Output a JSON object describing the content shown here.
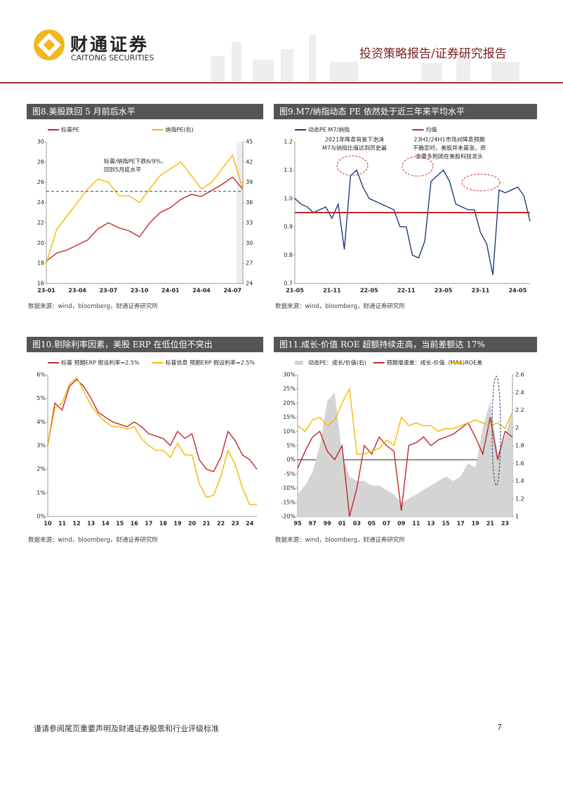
{
  "header": {
    "company_cn": "财通证券",
    "company_en": "CAITONG SECURITIES",
    "report_type": "投资策略报告/证券研究报告"
  },
  "chart_data": [
    {
      "type": "line",
      "title": "图8.美股跌回 5 月前后水平",
      "source": "数据来源：wind，bloomberg，财通证券研究所",
      "annotations": [
        {
          "lines": [
            "标普/纳指PE下跌6/9%，",
            "回到5月底水平"
          ]
        }
      ],
      "categories": [
        "23-01",
        null,
        null,
        "23-04",
        null,
        null,
        "23-07",
        null,
        null,
        "23-10",
        null,
        null,
        "24-01",
        null,
        null,
        "24-04",
        null,
        null,
        "24-07",
        null
      ],
      "ylim": [
        16,
        30
      ],
      "yticks": [
        16,
        18,
        20,
        22,
        24,
        26,
        28,
        30
      ],
      "y2lim": [
        24,
        45
      ],
      "y2ticks": [
        24,
        27,
        30,
        33,
        36,
        39,
        42,
        45
      ],
      "reference_line": {
        "value": 25.1,
        "color": "#2040a0",
        "dashed": true
      },
      "series": [
        {
          "name": "标普PE",
          "color": "#c0282d",
          "values": [
            18.2,
            19.0,
            19.3,
            19.8,
            20.3,
            21.4,
            22.0,
            21.5,
            21.2,
            20.6,
            22.0,
            23.0,
            23.5,
            24.3,
            24.8,
            24.6,
            25.2,
            25.8,
            26.5,
            25.3
          ]
        },
        {
          "name": "纳指PE(右)",
          "color": "#f5b800",
          "axis": "y2",
          "values": [
            27,
            32,
            34,
            36,
            38,
            39.5,
            39,
            37,
            37,
            36,
            38,
            40,
            41,
            42,
            40,
            38,
            39,
            41,
            43,
            38
          ]
        }
      ]
    },
    {
      "type": "line",
      "title": "图9.M7/纳指动态 PE 依然处于近三年来平均水平",
      "source": "数据来源：wind，bloomberg，财通证券研究所",
      "annotations": [
        {
          "lines": [
            "2021年降息背景下泡沫",
            "M7与纳指比值达到历史最"
          ]
        },
        {
          "lines": [
            "23H1/24H1市场对降息预期",
            "不确定时，美股并未普涨，资",
            "金更多抱团在美股科技龙头"
          ]
        }
      ],
      "categories": [
        "21-05",
        null,
        null,
        null,
        null,
        null,
        "21-11",
        null,
        null,
        null,
        null,
        null,
        "22-05",
        null,
        null,
        null,
        null,
        null,
        "22-11",
        null,
        null,
        null,
        null,
        null,
        "23-05",
        null,
        null,
        null,
        null,
        null,
        "23-11",
        null,
        null,
        null,
        null,
        null,
        "24-05",
        null,
        null
      ],
      "ylim": [
        0.7,
        1.2
      ],
      "yticks": [
        0.7,
        0.8,
        0.9,
        {
          "value": 1.0,
          "label": "1.0"
        },
        1.1,
        1.2
      ],
      "reference_line": {
        "name": "均值",
        "value": 0.95,
        "color": "#c0282d",
        "dashed": false
      },
      "series": [
        {
          "name": "动态PE M7/纳指",
          "color": "#1f3a7a",
          "values": [
            1.0,
            0.98,
            0.97,
            0.95,
            0.96,
            0.97,
            0.93,
            0.98,
            0.82,
            1.08,
            1.1,
            1.04,
            1.0,
            0.99,
            0.98,
            0.97,
            0.96,
            0.9,
            0.9,
            0.8,
            0.79,
            0.85,
            1.06,
            1.08,
            1.1,
            1.06,
            0.98,
            0.97,
            0.96,
            0.96,
            0.88,
            0.84,
            0.73,
            1.03,
            1.02,
            1.03,
            1.04,
            1.01,
            0.92
          ]
        }
      ]
    },
    {
      "type": "line",
      "title": "图10.剔除利率因素，美股 ERP 在低位但不突出",
      "source": "数据来源：wind，bloomberg，财通证券研究所",
      "categories": [
        "10",
        null,
        "11",
        null,
        "12",
        null,
        "13",
        null,
        "14",
        null,
        "15",
        null,
        "16",
        null,
        "17",
        null,
        "18",
        null,
        "19",
        null,
        "20",
        null,
        "21",
        null,
        "22",
        null,
        "23",
        null,
        "24",
        null
      ],
      "ylim": [
        0,
        6
      ],
      "yticks": [
        {
          "value": 0,
          "label": "0%"
        },
        {
          "value": 1,
          "label": "1%"
        },
        {
          "value": 2,
          "label": "2%"
        },
        {
          "value": 3,
          "label": "3%"
        },
        {
          "value": 4,
          "label": "4%"
        },
        {
          "value": 5,
          "label": "5%"
        },
        {
          "value": 6,
          "label": "6%"
        }
      ],
      "series": [
        {
          "name": "标普 预期ERP 假设利率=2.5%",
          "color": "#c0282d",
          "values": [
            3.0,
            4.8,
            4.5,
            5.5,
            5.8,
            5.5,
            5.0,
            4.4,
            4.2,
            4.0,
            3.9,
            3.8,
            4.0,
            3.8,
            3.5,
            3.4,
            3.3,
            3.0,
            3.6,
            3.3,
            3.5,
            2.4,
            2.0,
            1.9,
            2.5,
            3.6,
            3.2,
            2.6,
            2.4,
            2.0
          ]
        },
        {
          "name": "标普信息 预期ERP 假设利率=2.5%",
          "color": "#f5b800",
          "values": [
            3.0,
            4.6,
            4.8,
            5.6,
            5.9,
            5.3,
            4.7,
            4.3,
            4.0,
            3.8,
            3.8,
            3.7,
            3.8,
            3.3,
            3.0,
            2.8,
            2.8,
            2.5,
            3.1,
            2.6,
            2.6,
            1.4,
            0.8,
            0.9,
            1.7,
            2.8,
            2.2,
            1.2,
            0.5,
            0.5
          ]
        }
      ]
    },
    {
      "type": "line",
      "title": "图11.成长-价值 ROE 超额持续走高，当前差额达 17%",
      "source": "数据来源：wind，bloomberg，财通证券研究所",
      "categories": [
        "95",
        null,
        "97",
        null,
        "99",
        null,
        "01",
        null,
        "03",
        null,
        "05",
        null,
        "07",
        null,
        "09",
        null,
        "11",
        null,
        "13",
        null,
        "15",
        null,
        "17",
        null,
        "19",
        null,
        "21",
        null,
        "23",
        null
      ],
      "ylim": [
        -20,
        30
      ],
      "yticks": [
        {
          "value": -20,
          "label": "-20%"
        },
        {
          "value": -15,
          "label": "-15%"
        },
        {
          "value": -10,
          "label": "-10%"
        },
        {
          "value": -5,
          "label": "-5%"
        },
        {
          "value": 0,
          "label": "0%"
        },
        {
          "value": 5,
          "label": "5%"
        },
        {
          "value": 10,
          "label": "10%"
        },
        {
          "value": 15,
          "label": "15%"
        },
        {
          "value": 20,
          "label": "20%"
        },
        {
          "value": 25,
          "label": "25%"
        },
        {
          "value": 30,
          "label": "30%"
        }
      ],
      "y2lim": [
        1,
        2.6
      ],
      "y2ticks": [
        1,
        1.2,
        1.4,
        1.6,
        1.8,
        2,
        2.2,
        2.4,
        2.6
      ],
      "series": [
        {
          "name": "动态PE：成长/价值(右)",
          "color": "#d4d4d4",
          "axis": "y2",
          "kind": "area",
          "values": [
            1.25,
            1.35,
            1.5,
            1.8,
            2.3,
            2.4,
            1.7,
            1.45,
            1.4,
            1.4,
            1.35,
            1.35,
            1.3,
            1.25,
            1.15,
            1.2,
            1.25,
            1.3,
            1.35,
            1.4,
            1.45,
            1.4,
            1.45,
            1.6,
            1.55,
            2.0,
            2.3,
            1.7,
            1.9,
            2.2
          ]
        },
        {
          "name": "预期增速差：成长-价值（MA6)",
          "color": "#c0282d",
          "values": [
            -3,
            3,
            8,
            10,
            3,
            0,
            5,
            -20,
            -10,
            5,
            2,
            8,
            5,
            3,
            -18,
            5,
            6,
            8,
            5,
            7,
            8,
            9,
            11,
            13,
            8,
            2,
            15,
            0,
            10,
            8
          ]
        },
        {
          "name": "ROE差",
          "color": "#f5b800",
          "values": [
            12,
            10,
            14,
            15,
            12,
            14,
            20,
            25,
            2,
            2,
            3,
            4,
            7,
            5,
            15,
            12,
            13,
            12,
            12,
            10,
            11,
            11,
            12,
            13,
            14,
            13,
            12,
            13,
            11,
            17
          ]
        }
      ]
    }
  ],
  "footer": {
    "disclaimer": "谨请参阅尾页重要声明及财通证券股票和行业评级标准",
    "page": 7
  }
}
